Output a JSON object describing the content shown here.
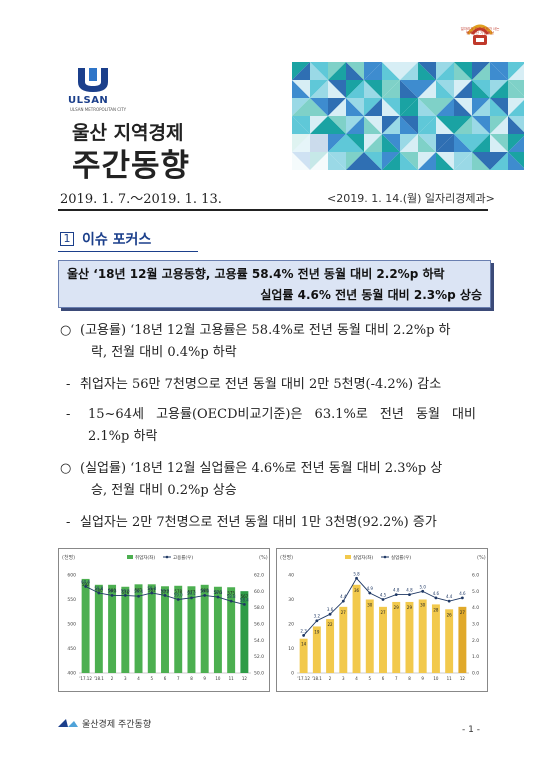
{
  "header": {
    "logo_text": "ULSAN",
    "logo_sub": "ULSAN METROPOLITAN CITY",
    "title_line1": "울산 지역경제",
    "title_line2": "주간동향",
    "emblem_text": "일자리가 오고 경제가 사는\n행복울산 기업 울산",
    "period": "2019. 1. 7.～2019. 1. 13.",
    "department": "<2019. 1. 14.(월) 일자리경제과>"
  },
  "section": {
    "number": "1",
    "title": "이슈 포커스"
  },
  "headline": {
    "line1": "울산 ‘18년 12월 고용동향, 고용률 58.4% 전년 동월 대비 2.2%p 하락",
    "line2": "실업률 4.6% 전년 동월 대비 2.3%p 상승"
  },
  "bullets": [
    {
      "marker": "○",
      "lines": [
        "(고용률) ‘18년 12월 고용률은 58.4%로 전년 동월 대비 2.2%p 하",
        "락, 전월 대비 0.4%p 하락"
      ]
    },
    {
      "marker": "-",
      "lines": [
        "취업자는 56만 7천명으로 전년 동월 대비 2만 5천명(-4.2%) 감소"
      ]
    },
    {
      "marker": "-",
      "lines": [
        "15~64세 고용률(OECD비교기준)은 63.1%로 전년 동월 대비",
        "2.1%p 하락"
      ]
    },
    {
      "marker": "○",
      "lines": [
        "(실업률) ‘18년 12월 실업률은 4.6%로 전년 동월 대비 2.3%p 상",
        "승, 전월 대비 0.2%p 상승"
      ]
    },
    {
      "marker": "-",
      "lines": [
        "실업자는 2만 7천명으로 전년 동월 대비 1만 3천명(92.2%) 증가"
      ]
    }
  ],
  "chart_data": [
    {
      "type": "bar",
      "left_unit": "(천명)",
      "right_unit": "(%)",
      "categories": [
        "'17.12",
        "'18.1",
        "2",
        "3",
        "4",
        "5",
        "6",
        "7",
        "8",
        "9",
        "10",
        "11",
        "12"
      ],
      "series": [
        {
          "name": "취업자(좌)",
          "values": [
            592,
            580,
            580,
            576,
            581,
            581,
            577,
            578,
            577,
            580,
            576,
            575,
            567
          ],
          "color": "#4caf50"
        },
        {
          "name": "고용률(우)",
          "values": [
            60.6,
            59.8,
            59.5,
            59.5,
            59.4,
            59.8,
            59.5,
            59.0,
            59.2,
            59.5,
            59.3,
            58.8,
            58.4
          ],
          "color": "#1f3864"
        }
      ],
      "ylim_left": [
        400,
        600
      ],
      "ylim_right": [
        50.0,
        62.0
      ],
      "left_ticks": [
        400,
        450,
        500,
        550,
        600
      ],
      "right_ticks": [
        50.0,
        52.0,
        54.0,
        56.0,
        58.0,
        60.0,
        62.0
      ]
    },
    {
      "type": "bar",
      "left_unit": "(천명)",
      "right_unit": "(%)",
      "categories": [
        "'17.12",
        "'18.1",
        "2",
        "3",
        "4",
        "5",
        "6",
        "7",
        "8",
        "9",
        "10",
        "11",
        "12"
      ],
      "series": [
        {
          "name": "실업자(좌)",
          "values": [
            14,
            19,
            22,
            27,
            36,
            30,
            27,
            29,
            29,
            30,
            28,
            26,
            27
          ],
          "color": "#f2c94c"
        },
        {
          "name": "실업률(우)",
          "values": [
            2.3,
            3.2,
            3.6,
            4.4,
            5.8,
            4.9,
            4.5,
            4.8,
            4.8,
            5.0,
            4.6,
            4.4,
            4.6
          ],
          "color": "#1f3864"
        }
      ],
      "ylim_left": [
        0,
        40
      ],
      "ylim_right": [
        0.0,
        6.0
      ],
      "left_ticks": [
        0,
        10,
        20,
        30,
        40
      ],
      "right_ticks": [
        0.0,
        1.0,
        2.0,
        3.0,
        4.0,
        5.0,
        6.0
      ]
    }
  ],
  "footer": {
    "text": "울산경제 주간동향",
    "page": "- 1 -"
  }
}
